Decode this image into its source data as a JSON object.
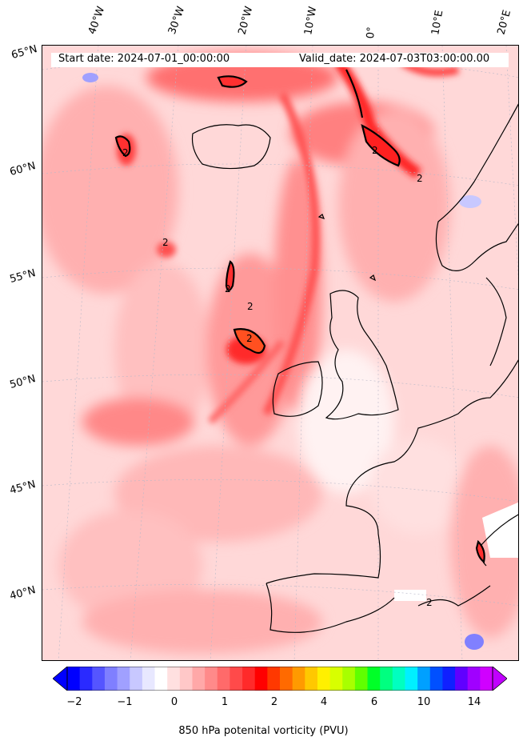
{
  "header": {
    "start_date": "Start date: 2024-07-01_00:00:00",
    "valid_date": "Valid_date: 2024-07-03T03:00:00.00"
  },
  "axes": {
    "longitude_ticks": [
      "40°W",
      "30°W",
      "20°W",
      "10°W",
      "0°",
      "10°E",
      "20°E"
    ],
    "latitude_ticks": [
      "65°N",
      "60°N",
      "55°N",
      "50°N",
      "45°N",
      "40°N"
    ]
  },
  "contour_labels": [
    "2",
    "2",
    "2",
    "2",
    "2",
    "2",
    "2",
    "2"
  ],
  "colorbar": {
    "label": "850 hPa potenital vorticity (PVU)",
    "tick_labels": [
      "−2",
      "−1",
      "0",
      "1",
      "2",
      "4",
      "6",
      "10",
      "14"
    ],
    "extend": "both",
    "colors": [
      "#0000ff",
      "#2a2aff",
      "#5555ff",
      "#7f7fff",
      "#a0a0ff",
      "#c8c8ff",
      "#e8e8ff",
      "#ffffff",
      "#ffe0e0",
      "#ffc8c8",
      "#ffa8a8",
      "#ff8a8a",
      "#ff6a6a",
      "#ff4a4a",
      "#ff2a2a",
      "#ff0000",
      "#ff3800",
      "#ff6a00",
      "#ff9a00",
      "#ffc800",
      "#fff000",
      "#d8ff00",
      "#a8ff00",
      "#60ff00",
      "#00ff28",
      "#00ff80",
      "#00ffc0",
      "#00f0ff",
      "#00a0ff",
      "#0050ff",
      "#1020ff",
      "#6000ff",
      "#a000ff",
      "#d000ff"
    ]
  },
  "colors": {
    "land_outline": "#000000",
    "background_shade": "#ffe8e8"
  }
}
